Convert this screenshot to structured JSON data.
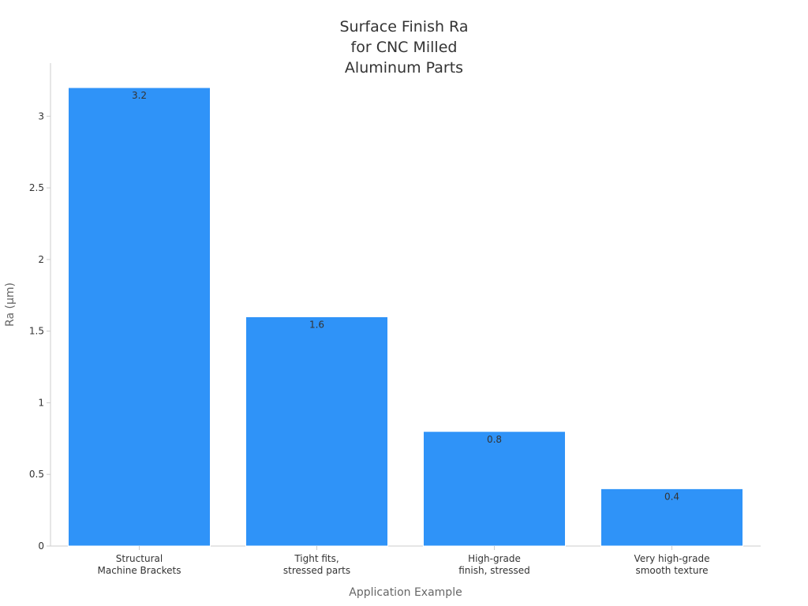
{
  "chart_data": {
    "type": "bar",
    "title": [
      "Surface Finish Ra",
      "for CNC Milled",
      "Aluminum Parts"
    ],
    "xlabel": "Application Example",
    "ylabel": "Ra (µm)",
    "ylim": [
      0,
      3.2
    ],
    "yticks": [
      0,
      0.5,
      1,
      1.5,
      2,
      2.5,
      3
    ],
    "ytick_labels": [
      "0",
      "0.5",
      "1",
      "1.5",
      "2",
      "2.5",
      "3"
    ],
    "categories": [
      [
        "Structural",
        "Machine Brackets"
      ],
      [
        "Tight fits,",
        "stressed parts"
      ],
      [
        "High-grade",
        "finish, stressed"
      ],
      [
        "Very high-grade",
        "smooth texture"
      ]
    ],
    "values": [
      3.2,
      1.6,
      0.8,
      0.4
    ],
    "value_labels": [
      "3.2",
      "1.6",
      "0.8",
      "0.4"
    ],
    "grid": false,
    "legend": "none",
    "colors": {
      "bar": "#2f93f8",
      "bar_edge": "#ffffff",
      "axis": "#cccccc",
      "text": "#333333",
      "axis_title": "#666666"
    }
  }
}
